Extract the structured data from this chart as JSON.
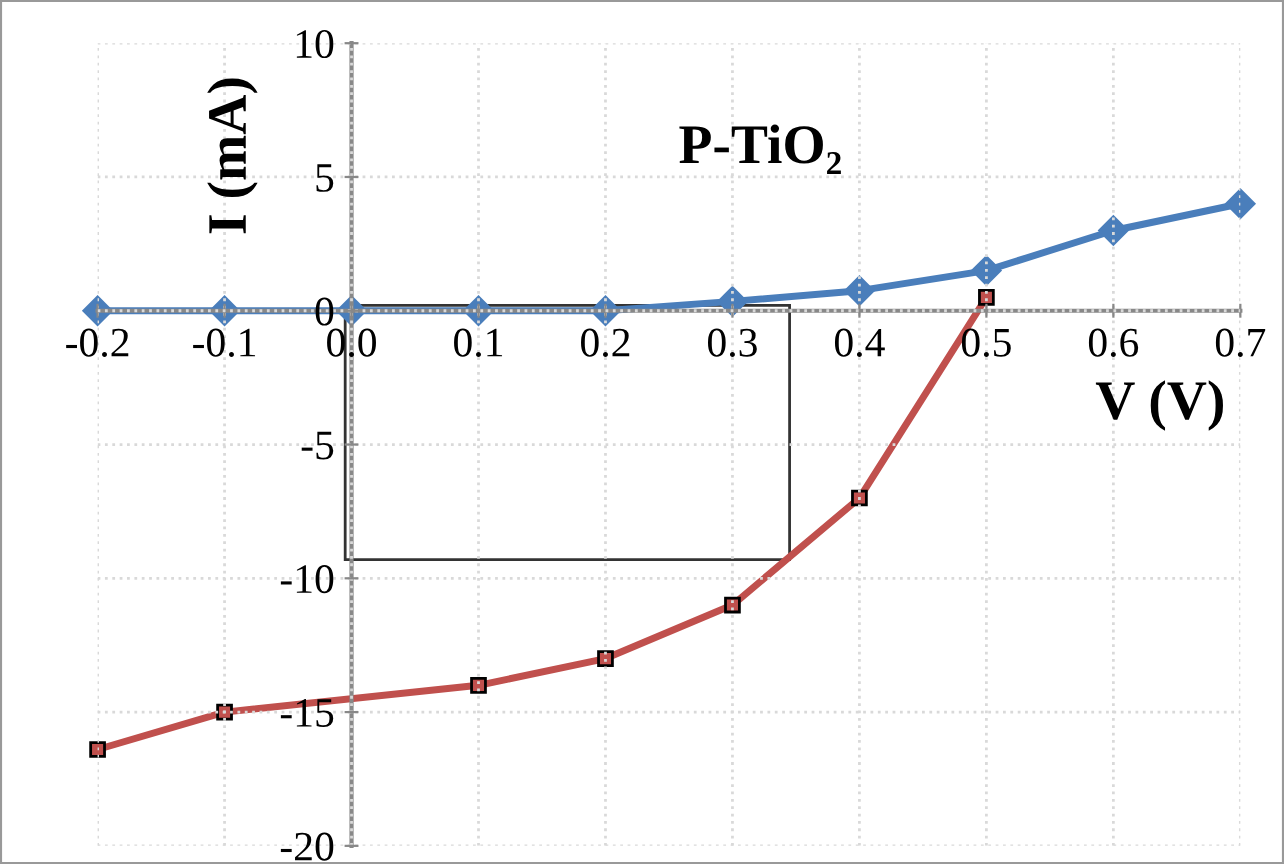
{
  "chart_data": {
    "type": "line",
    "title": "P-TiO₂",
    "xlabel": "V (V)",
    "ylabel": "I (mA)",
    "xlim": [
      -0.2,
      0.7
    ],
    "xticks": [
      -0.2,
      -0.1,
      {
        "value": 0,
        "label": "0.0"
      },
      0.1,
      0.2,
      0.3,
      0.4,
      0.5,
      0.6,
      0.7
    ],
    "ylim": [
      -20,
      10
    ],
    "yticks": [
      -20,
      -15,
      -10,
      -5,
      0,
      5,
      10
    ],
    "grid": true,
    "line_style": "solid",
    "series": [
      {
        "color": "#4a7ebb",
        "marker": "diamond",
        "x": [
          -0.2,
          -0.1,
          0.0,
          0.1,
          0.2,
          0.3,
          0.4,
          0.5,
          0.6,
          0.7
        ],
        "values": [
          0,
          0,
          0,
          0,
          0,
          0.35,
          0.75,
          1.5,
          3.0,
          4.0
        ]
      },
      {
        "color": "#c0504d",
        "marker": "square",
        "x": [
          -0.2,
          -0.1,
          0.1,
          0.2,
          0.3,
          0.4,
          0.5
        ],
        "values": [
          -16.4,
          -15,
          -14,
          -13,
          -11,
          -7,
          0.5
        ]
      }
    ]
  }
}
